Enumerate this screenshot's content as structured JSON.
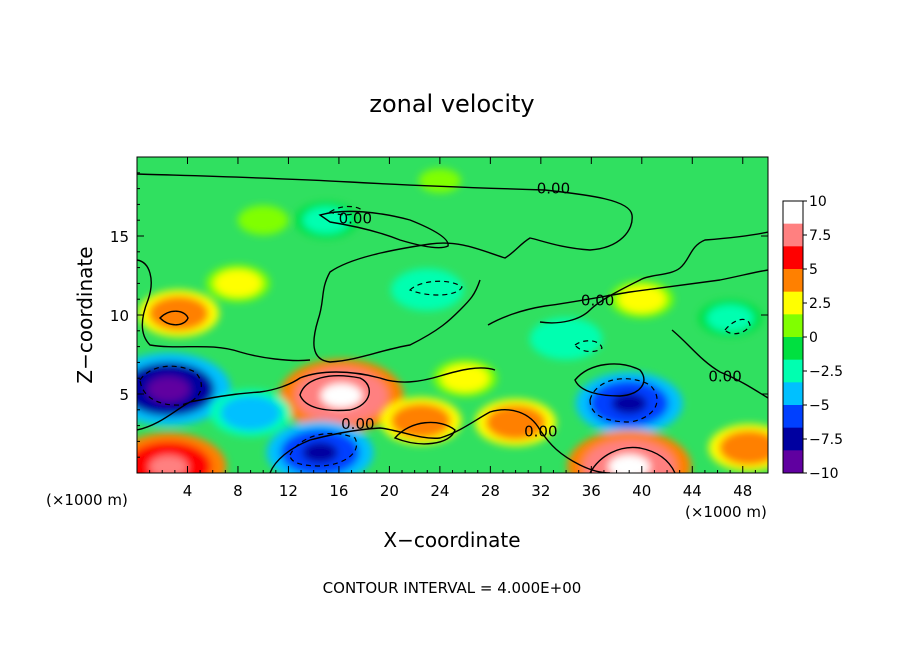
{
  "chart_data": {
    "type": "heatmap",
    "title": "zonal velocity",
    "xlabel": "X−coordinate",
    "ylabel": "Z−coordinate",
    "x_unit_left": "(×1000 m)",
    "x_unit_right": "(×1000 m)",
    "footer": "CONTOUR INTERVAL = 4.000E+00",
    "xlim": [
      0,
      50
    ],
    "ylim": [
      0,
      20
    ],
    "x_ticks": [
      4,
      8,
      12,
      16,
      20,
      24,
      28,
      32,
      36,
      40,
      44,
      48
    ],
    "x_tick_labels": [
      "4",
      "8",
      "12",
      "16",
      "20",
      "24",
      "28",
      "32",
      "36",
      "40",
      "44",
      "48"
    ],
    "y_ticks": [
      5,
      10,
      15
    ],
    "y_tick_labels": [
      "5",
      "10",
      "15"
    ],
    "colorbar": {
      "range": [
        -10,
        10
      ],
      "ticks": [
        10,
        7.5,
        5,
        2.5,
        0,
        -2.5,
        -5,
        -7.5,
        -10
      ],
      "tick_labels": [
        "10",
        "7.5",
        "5",
        "2.5",
        "0",
        "−2.5",
        "−5",
        "−7.5",
        "−10"
      ],
      "colors": [
        "#ffffff",
        "#ff8080",
        "#ff0000",
        "#ff8000",
        "#ffff00",
        "#80ff00",
        "#00e040",
        "#00ffb0",
        "#00c0ff",
        "#0040ff",
        "#0000a0",
        "#6000a0"
      ]
    },
    "contour_labels": [
      {
        "text": "0.00",
        "x": 33,
        "y": 17.7
      },
      {
        "text": "0.00",
        "x": 17.3,
        "y": 15.8
      },
      {
        "text": "0.00",
        "x": 36.5,
        "y": 10.6
      },
      {
        "text": "0.00",
        "x": 46.6,
        "y": 5.8
      },
      {
        "text": "0.00",
        "x": 17.5,
        "y": 2.8
      },
      {
        "text": "0.00",
        "x": 32.0,
        "y": 2.3
      }
    ],
    "features": [
      {
        "x": 2.5,
        "z": 5.3,
        "value": -10
      },
      {
        "x": 16.2,
        "z": 4.9,
        "value": 10
      },
      {
        "x": 14.5,
        "z": 1.3,
        "value": -8
      },
      {
        "x": 39.0,
        "z": 4.4,
        "value": -8
      },
      {
        "x": 39.0,
        "z": 0.4,
        "value": 10
      },
      {
        "x": 2.5,
        "z": 0.4,
        "value": 9
      },
      {
        "x": 30.0,
        "z": 3.2,
        "value": 5
      },
      {
        "x": 22.5,
        "z": 3.3,
        "value": 5
      },
      {
        "x": 23.0,
        "z": 11.6,
        "value": -4
      },
      {
        "x": 9.0,
        "z": 3.8,
        "value": -5
      },
      {
        "x": 3.3,
        "z": 10.1,
        "value": 5
      },
      {
        "x": 15.0,
        "z": 16.0,
        "value": -3
      },
      {
        "x": 8.0,
        "z": 12.0,
        "value": 3
      },
      {
        "x": 40.0,
        "z": 11.0,
        "value": 3
      },
      {
        "x": 34.0,
        "z": 8.5,
        "value": -4
      },
      {
        "x": 26.0,
        "z": 6.0,
        "value": 3
      },
      {
        "x": 47.0,
        "z": 9.8,
        "value": -3
      },
      {
        "x": 48.5,
        "z": 1.6,
        "value": 5
      },
      {
        "x": 24.0,
        "z": 18.5,
        "value": 0.5
      },
      {
        "x": 10.0,
        "z": 16.0,
        "value": 1.5
      }
    ]
  }
}
